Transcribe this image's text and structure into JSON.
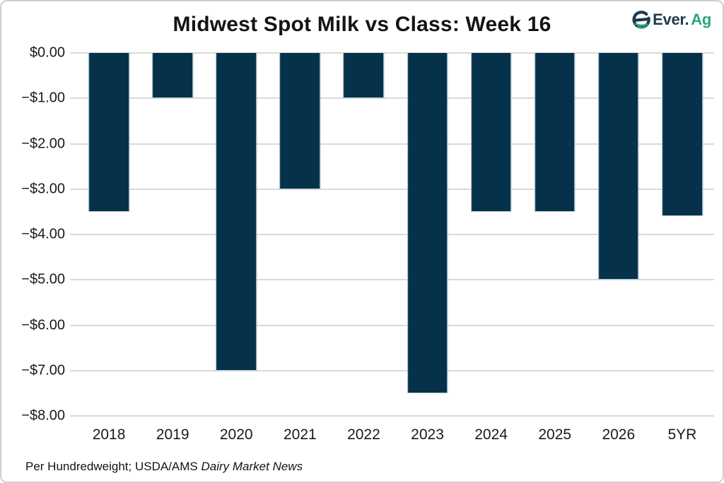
{
  "header": {
    "title": "Midwest Spot Milk vs Class: Week 16"
  },
  "logo": {
    "icon": "ever-ag-logo-icon",
    "text_primary": "Ever.",
    "text_secondary": "Ag",
    "primary_color": "#1d3a4e",
    "secondary_color": "#2aa577"
  },
  "footnote": {
    "prefix": "Per Hundredweight; USDA/AMS ",
    "italic": "Dairy Market News"
  },
  "chart_data": {
    "type": "bar",
    "title": "Midwest Spot Milk vs Class: Week 16",
    "categories": [
      "2018",
      "2019",
      "2020",
      "2021",
      "2022",
      "2023",
      "2024",
      "2025",
      "2026",
      "5YR"
    ],
    "values": [
      -3.5,
      -1.0,
      -7.0,
      -3.0,
      -1.0,
      -7.5,
      -3.5,
      -3.5,
      -5.0,
      -3.6
    ],
    "xlabel": "",
    "ylabel": "",
    "ylim": [
      -8.0,
      0.0
    ],
    "yticks": [
      0,
      -1,
      -2,
      -3,
      -4,
      -5,
      -6,
      -7,
      -8
    ],
    "ytick_labels": [
      "$0.00",
      "−$1.00",
      "−$2.00",
      "−$3.00",
      "−$4.00",
      "−$5.00",
      "−$6.00",
      "−$7.00",
      "−$8.00"
    ],
    "grid": "horizontal",
    "gridline_color": "#d9d9d9",
    "bar_color": "#05324a",
    "bar_border_color": "#b9cdd8",
    "legend_position": "none",
    "source_note": "Per Hundredweight; USDA/AMS Dairy Market News"
  }
}
